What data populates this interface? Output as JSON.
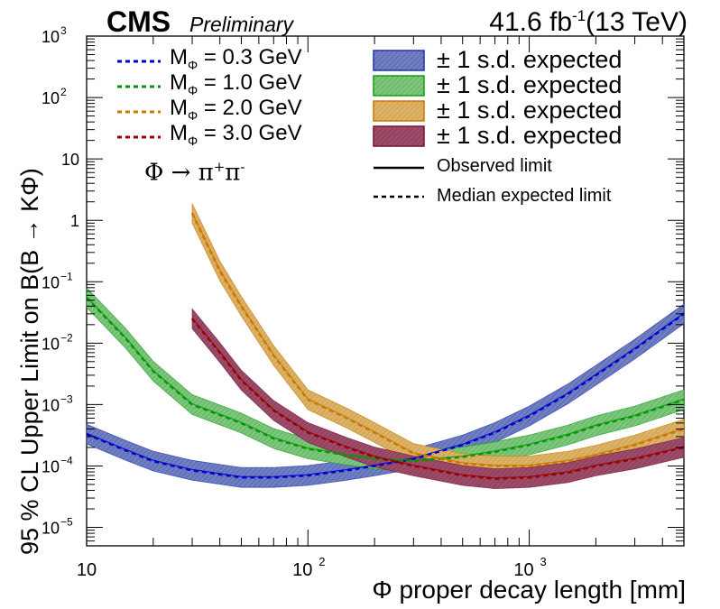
{
  "header": {
    "experiment": "CMS",
    "status": "Preliminary",
    "lumi": "41.6 fb",
    "lumi_exp": "-1",
    "energy": "(13 TeV)"
  },
  "annotation": {
    "process": "Φ → π",
    "plus": "+",
    "pi": "π",
    "minus": "-"
  },
  "legend": {
    "median_entries": [
      {
        "prefix": "M",
        "sub": "Φ",
        "value": " = 0.3 GeV",
        "color": "#0000cc"
      },
      {
        "prefix": "M",
        "sub": "Φ",
        "value": " = 1.0 GeV",
        "color": "#009900"
      },
      {
        "prefix": "M",
        "sub": "Φ",
        "value": " = 2.0 GeV",
        "color": "#cc7700"
      },
      {
        "prefix": "M",
        "sub": "Φ",
        "value": " = 3.0 GeV",
        "color": "#990000"
      }
    ],
    "band_entries": [
      {
        "label": "± 1 s.d. expected",
        "fill": "#6f7fc0",
        "edge": "#2233aa"
      },
      {
        "label": "± 1 s.d. expected",
        "fill": "#7fc47f",
        "edge": "#11a011"
      },
      {
        "label": "± 1 s.d. expected",
        "fill": "#d9b36a",
        "edge": "#cc7700"
      },
      {
        "label": "± 1 s.d. expected",
        "fill": "#9a4d6a",
        "edge": "#7a1030"
      }
    ],
    "observed_label": "Observed limit",
    "expected_label": "Median expected limit"
  },
  "chart_data": {
    "type": "line",
    "title": "",
    "xlabel": "Φ proper decay length [mm]",
    "ylabel": "95 % CL Upper Limit on B(B → KΦ)",
    "x_scale": "log",
    "y_scale": "log",
    "xlim": [
      10,
      5000
    ],
    "ylim": [
      5e-06,
      1000
    ],
    "x_ticks": [
      {
        "value": 10,
        "label": "10",
        "exp": ""
      },
      {
        "value": 100,
        "label": "10",
        "exp": "2"
      },
      {
        "value": 1000,
        "label": "10",
        "exp": "3"
      }
    ],
    "y_ticks": [
      {
        "value": 1e-05,
        "label": "10",
        "exp": "−5"
      },
      {
        "value": 0.0001,
        "label": "10",
        "exp": "−4"
      },
      {
        "value": 0.001,
        "label": "10",
        "exp": "−3"
      },
      {
        "value": 0.01,
        "label": "10",
        "exp": "−2"
      },
      {
        "value": 0.1,
        "label": "10",
        "exp": "−1"
      },
      {
        "value": 1,
        "label": "1",
        "exp": ""
      },
      {
        "value": 10,
        "label": "10",
        "exp": ""
      },
      {
        "value": 100,
        "label": "10",
        "exp": "2"
      },
      {
        "value": 1000,
        "label": "10",
        "exp": "3"
      }
    ],
    "band_half_width_factor": 1.45,
    "legend_position": "top",
    "series": [
      {
        "name": "M_Φ = 0.3 GeV",
        "color": "#0000cc",
        "fill": "#6f7fc0",
        "edge": "#2233aa",
        "x": [
          10,
          15,
          20,
          30,
          50,
          70,
          100,
          150,
          200,
          300,
          500,
          700,
          1000,
          1500,
          2000,
          3000,
          5000
        ],
        "y": [
          0.00033,
          0.00018,
          0.00012,
          8.5e-05,
          6.5e-05,
          6.5e-05,
          7e-05,
          8.5e-05,
          0.0001,
          0.00013,
          0.00022,
          0.00035,
          0.00065,
          0.0015,
          0.003,
          0.008,
          0.03
        ]
      },
      {
        "name": "M_Φ = 1.0 GeV",
        "color": "#009900",
        "fill": "#7fc47f",
        "edge": "#11a011",
        "x": [
          10,
          15,
          20,
          30,
          50,
          70,
          100,
          150,
          200,
          300,
          500,
          700,
          1000,
          1500,
          2000,
          3000,
          5000
        ],
        "y": [
          0.055,
          0.012,
          0.0035,
          0.001,
          0.0005,
          0.00028,
          0.00019,
          0.00015,
          0.00013,
          0.00012,
          0.00014,
          0.00017,
          0.00022,
          0.00032,
          0.00045,
          0.00065,
          0.0012
        ]
      },
      {
        "name": "M_Φ = 2.0 GeV",
        "color": "#cc7700",
        "fill": "#d9b36a",
        "edge": "#cc7700",
        "x": [
          30,
          40,
          50,
          70,
          100,
          150,
          200,
          300,
          500,
          700,
          1000,
          1500,
          2000,
          3000,
          5000
        ],
        "y": [
          1.3,
          0.15,
          0.04,
          0.0063,
          0.0012,
          0.0006,
          0.00035,
          0.00016,
          0.00011,
          0.0001,
          0.0001,
          0.00012,
          0.00015,
          0.00022,
          0.0004
        ]
      },
      {
        "name": "M_Φ = 3.0 GeV",
        "color": "#990000",
        "fill": "#9a4d6a",
        "edge": "#7a1030",
        "x": [
          30,
          40,
          50,
          70,
          100,
          150,
          200,
          300,
          500,
          700,
          1000,
          1500,
          2000,
          3000,
          5000
        ],
        "y": [
          0.025,
          0.007,
          0.0025,
          0.0008,
          0.00035,
          0.0002,
          0.00014,
          0.0001,
          7e-05,
          6.2e-05,
          6.5e-05,
          7.8e-05,
          0.0001,
          0.00013,
          0.0002
        ]
      }
    ]
  }
}
